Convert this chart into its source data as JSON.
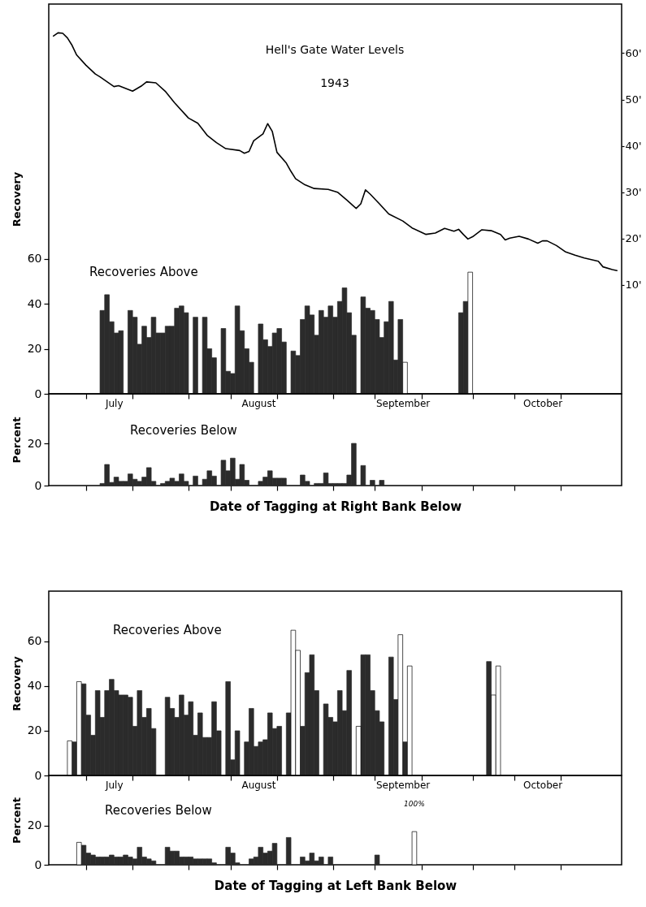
{
  "chart_data": [
    {
      "type": "bar",
      "title": "Hell's Gate Water Levels",
      "subtitle": "1943",
      "ylabel": "Recovery",
      "annotations": [
        "Recoveries Above"
      ],
      "xlim": [
        "1943-07-02",
        "1943-11-02"
      ],
      "xticks": [
        {
          "value": "1943-07-10",
          "label": null
        },
        {
          "value": "1943-07-16",
          "label": "July"
        },
        {
          "value": "1943-07-20",
          "label": null
        },
        {
          "value": "1943-08-01",
          "label": null
        },
        {
          "value": "1943-08-10",
          "label": null
        },
        {
          "value": "1943-08-16",
          "label": "August"
        },
        {
          "value": "1943-08-20",
          "label": null
        },
        {
          "value": "1943-09-01",
          "label": null
        },
        {
          "value": "1943-09-10",
          "label": null
        },
        {
          "value": "1943-09-16",
          "label": "September"
        },
        {
          "value": "1943-09-20",
          "label": null
        },
        {
          "value": "1943-10-01",
          "label": null
        },
        {
          "value": "1943-10-10",
          "label": null
        },
        {
          "value": "1943-10-16",
          "label": "October"
        },
        {
          "value": "1943-10-20",
          "label": null
        }
      ],
      "ylim": [
        0,
        173
      ],
      "yticks": [
        0,
        20,
        40,
        60
      ],
      "y2lim": [
        -13.5,
        70.6
      ],
      "y2ticks": [
        {
          "value": 10,
          "label": "10'"
        },
        {
          "value": 20,
          "label": "20'"
        },
        {
          "value": 30,
          "label": "30'"
        },
        {
          "value": 40,
          "label": "40'"
        },
        {
          "value": 50,
          "label": "50'"
        },
        {
          "value": 60,
          "label": "60'"
        }
      ],
      "series": [
        {
          "color": "#2b2b2b",
          "x": [
            "1943-07-13",
            "1943-07-14",
            "1943-07-15",
            "1943-07-16",
            "1943-07-17",
            "1943-07-19",
            "1943-07-20",
            "1943-07-21",
            "1943-07-22",
            "1943-07-23",
            "1943-07-24",
            "1943-07-25",
            "1943-07-26",
            "1943-07-27",
            "1943-07-28",
            "1943-07-29",
            "1943-07-30",
            "1943-07-31",
            "1943-08-02",
            "1943-08-04",
            "1943-08-05",
            "1943-08-06",
            "1943-08-08",
            "1943-08-09",
            "1943-08-10",
            "1943-08-11",
            "1943-08-12",
            "1943-08-13",
            "1943-08-14",
            "1943-08-16",
            "1943-08-17",
            "1943-08-18",
            "1943-08-19",
            "1943-08-20",
            "1943-08-21",
            "1943-08-23",
            "1943-08-24",
            "1943-08-25",
            "1943-08-26",
            "1943-08-27",
            "1943-08-28",
            "1943-08-29",
            "1943-08-30",
            "1943-08-31",
            "1943-09-01",
            "1943-09-02",
            "1943-09-03",
            "1943-09-04",
            "1943-09-05",
            "1943-09-07",
            "1943-09-08",
            "1943-09-09",
            "1943-09-10",
            "1943-09-11",
            "1943-09-12",
            "1943-09-13",
            "1943-09-14",
            "1943-09-15",
            "1943-09-28",
            "1943-09-29"
          ],
          "values": [
            37,
            44,
            32,
            27,
            28,
            37,
            34,
            22,
            30,
            25,
            34,
            27,
            27,
            30,
            30,
            38,
            39,
            36,
            34,
            34,
            20,
            16,
            29,
            10,
            9,
            39,
            28,
            20,
            14,
            31,
            24,
            21,
            27,
            29,
            23,
            19,
            17,
            33,
            39,
            35,
            26,
            37,
            34,
            39,
            34,
            41,
            47,
            36,
            26,
            43,
            38,
            37,
            33,
            25,
            32,
            41,
            15,
            33,
            36,
            41
          ]
        },
        {
          "color": "#ffffff",
          "x": [
            "1943-09-16",
            "1943-09-30"
          ],
          "values": [
            14,
            54
          ]
        },
        {
          "type": "line",
          "axis": "y2",
          "color": "#000000",
          "x": [
            "1943-07-03",
            "1943-07-04",
            "1943-07-05",
            "1943-07-06",
            "1943-07-07",
            "1943-07-08",
            "1943-07-10",
            "1943-07-12",
            "1943-07-13",
            "1943-07-16",
            "1943-07-17",
            "1943-07-19",
            "1943-07-20",
            "1943-07-22",
            "1943-07-23",
            "1943-07-25",
            "1943-07-27",
            "1943-07-29",
            "1943-08-01",
            "1943-08-03",
            "1943-08-05",
            "1943-08-07",
            "1943-08-09",
            "1943-08-12",
            "1943-08-13",
            "1943-08-14",
            "1943-08-15",
            "1943-08-17",
            "1943-08-18",
            "1943-08-19",
            "1943-08-20",
            "1943-08-22",
            "1943-08-23",
            "1943-08-24",
            "1943-08-26",
            "1943-08-28",
            "1943-08-31",
            "1943-09-02",
            "1943-09-04",
            "1943-09-06",
            "1943-09-07",
            "1943-09-08",
            "1943-09-09",
            "1943-09-11",
            "1943-09-13",
            "1943-09-16",
            "1943-09-18",
            "1943-09-21",
            "1943-09-23",
            "1943-09-25",
            "1943-09-27",
            "1943-09-28",
            "1943-09-29",
            "1943-09-30",
            "1943-10-01",
            "1943-10-03",
            "1943-10-05",
            "1943-10-07",
            "1943-10-08",
            "1943-10-09",
            "1943-10-11",
            "1943-10-13",
            "1943-10-15",
            "1943-10-16",
            "1943-10-17",
            "1943-10-19",
            "1943-10-21",
            "1943-10-23",
            "1943-10-25",
            "1943-10-28",
            "1943-10-29",
            "1943-10-31",
            "1943-11-01"
          ],
          "values": [
            63.7,
            64.4,
            64.3,
            63.3,
            61.7,
            59.6,
            57.4,
            55.5,
            54.9,
            52.8,
            53.0,
            52.2,
            51.8,
            53.0,
            53.8,
            53.6,
            51.8,
            49.3,
            46.0,
            44.9,
            42.3,
            40.7,
            39.4,
            39.0,
            38.4,
            38.8,
            41.1,
            42.6,
            44.8,
            43.1,
            38.6,
            36.3,
            34.5,
            32.9,
            31.6,
            30.8,
            30.6,
            30.0,
            28.3,
            26.5,
            27.5,
            30.5,
            29.6,
            27.5,
            25.3,
            23.8,
            22.3,
            20.9,
            21.2,
            22.2,
            21.6,
            22.0,
            20.9,
            19.9,
            20.4,
            21.9,
            21.7,
            20.9,
            19.7,
            20.1,
            20.5,
            19.9,
            19.0,
            19.5,
            19.5,
            18.5,
            17.1,
            16.4,
            15.8,
            15.1,
            13.9,
            13.3,
            13.1
          ]
        }
      ]
    },
    {
      "type": "bar",
      "ylabel": "Percent",
      "xlabel": "Date of Tagging at Right Bank Below",
      "annotations": [
        "Recoveries Below"
      ],
      "tick_labels": "y",
      "xlim": [
        "1943-07-02",
        "1943-11-02"
      ],
      "xticks": [
        {
          "value": "1943-07-10",
          "label": null
        },
        {
          "value": "1943-07-20",
          "label": null
        },
        {
          "value": "1943-08-01",
          "label": null
        },
        {
          "value": "1943-08-10",
          "label": null
        },
        {
          "value": "1943-08-20",
          "label": null
        },
        {
          "value": "1943-09-01",
          "label": null
        },
        {
          "value": "1943-09-10",
          "label": null
        },
        {
          "value": "1943-09-20",
          "label": null
        },
        {
          "value": "1943-10-01",
          "label": null
        },
        {
          "value": "1943-10-10",
          "label": null
        },
        {
          "value": "1943-10-20",
          "label": null
        }
      ],
      "ylim": [
        0,
        43.5
      ],
      "yticks": [
        0,
        20
      ],
      "series": [
        {
          "color": "#2b2b2b",
          "x": [
            "1943-07-13",
            "1943-07-14",
            "1943-07-15",
            "1943-07-16",
            "1943-07-17",
            "1943-07-18",
            "1943-07-19",
            "1943-07-20",
            "1943-07-21",
            "1943-07-22",
            "1943-07-23",
            "1943-07-24",
            "1943-07-26",
            "1943-07-27",
            "1943-07-28",
            "1943-07-29",
            "1943-07-30",
            "1943-07-31",
            "1943-08-02",
            "1943-08-04",
            "1943-08-05",
            "1943-08-06",
            "1943-08-08",
            "1943-08-09",
            "1943-08-10",
            "1943-08-11",
            "1943-08-12",
            "1943-08-13",
            "1943-08-16",
            "1943-08-17",
            "1943-08-18",
            "1943-08-19",
            "1943-08-20",
            "1943-08-21",
            "1943-08-25",
            "1943-08-26",
            "1943-08-28",
            "1943-08-29",
            "1943-08-30",
            "1943-08-31",
            "1943-09-01",
            "1943-09-02",
            "1943-09-03",
            "1943-09-04",
            "1943-09-05",
            "1943-09-07",
            "1943-09-09",
            "1943-09-11"
          ],
          "values": [
            1,
            10,
            1.5,
            4,
            2,
            2,
            5.5,
            3,
            2,
            4,
            8.5,
            2,
            1,
            2,
            3.5,
            2,
            5.5,
            2,
            4.5,
            3,
            7,
            4.5,
            12,
            7,
            13,
            3,
            10,
            2.5,
            2,
            4,
            7,
            3.5,
            3.5,
            3.5,
            5,
            2,
            1,
            1,
            6,
            1,
            1,
            1,
            1,
            5,
            20,
            9.5,
            2.5,
            2.5
          ]
        }
      ]
    },
    {
      "type": "bar",
      "ylabel": "Recovery",
      "annotations": [
        "Recoveries Above"
      ],
      "xlim": [
        "1943-07-02",
        "1943-11-02"
      ],
      "xticks": [
        {
          "value": "1943-07-10",
          "label": null
        },
        {
          "value": "1943-07-16",
          "label": "July"
        },
        {
          "value": "1943-07-20",
          "label": null
        },
        {
          "value": "1943-08-01",
          "label": null
        },
        {
          "value": "1943-08-10",
          "label": null
        },
        {
          "value": "1943-08-16",
          "label": "August"
        },
        {
          "value": "1943-08-20",
          "label": null
        },
        {
          "value": "1943-09-01",
          "label": null
        },
        {
          "value": "1943-09-10",
          "label": null
        },
        {
          "value": "1943-09-16",
          "label": "September"
        },
        {
          "value": "1943-09-20",
          "label": null
        },
        {
          "value": "1943-10-01",
          "label": null
        },
        {
          "value": "1943-10-10",
          "label": null
        },
        {
          "value": "1943-10-16",
          "label": "October"
        },
        {
          "value": "1943-10-20",
          "label": null
        }
      ],
      "ylim": [
        0,
        82.5
      ],
      "yticks": [
        0,
        20,
        40,
        60
      ],
      "series": [
        {
          "color": "#2b2b2b",
          "x": [
            "1943-07-07",
            "1943-07-09",
            "1943-07-10",
            "1943-07-11",
            "1943-07-12",
            "1943-07-13",
            "1943-07-14",
            "1943-07-15",
            "1943-07-16",
            "1943-07-17",
            "1943-07-18",
            "1943-07-19",
            "1943-07-20",
            "1943-07-21",
            "1943-07-22",
            "1943-07-23",
            "1943-07-24",
            "1943-07-27",
            "1943-07-28",
            "1943-07-29",
            "1943-07-30",
            "1943-07-31",
            "1943-08-01",
            "1943-08-02",
            "1943-08-03",
            "1943-08-04",
            "1943-08-05",
            "1943-08-06",
            "1943-08-07",
            "1943-08-09",
            "1943-08-10",
            "1943-08-11",
            "1943-08-13",
            "1943-08-14",
            "1943-08-15",
            "1943-08-16",
            "1943-08-17",
            "1943-08-18",
            "1943-08-19",
            "1943-08-20",
            "1943-08-22",
            "1943-08-25",
            "1943-08-26",
            "1943-08-27",
            "1943-08-28",
            "1943-08-30",
            "1943-08-31",
            "1943-09-01",
            "1943-09-02",
            "1943-09-03",
            "1943-09-04",
            "1943-09-07",
            "1943-09-08",
            "1943-09-09",
            "1943-09-10",
            "1943-09-11",
            "1943-09-13",
            "1943-09-14",
            "1943-09-16",
            "1943-10-04"
          ],
          "values": [
            15,
            41,
            27,
            18,
            38,
            26,
            38,
            43,
            38,
            36,
            36,
            35,
            22,
            38,
            26,
            30,
            21,
            35,
            30,
            26,
            36,
            27,
            33,
            18,
            28,
            17,
            17,
            33,
            20,
            42,
            7,
            20,
            15,
            30,
            13,
            15,
            16,
            28,
            21,
            22,
            28,
            22,
            46,
            54,
            38,
            32,
            26,
            24,
            38,
            29,
            47,
            54,
            54,
            38,
            29,
            24,
            53,
            34,
            15,
            51
          ]
        },
        {
          "color": "#ffffff",
          "x": [
            "1943-07-06",
            "1943-07-08",
            "1943-08-23",
            "1943-08-24",
            "1943-09-06",
            "1943-09-15",
            "1943-09-17",
            "1943-10-05",
            "1943-10-06"
          ],
          "values": [
            15.5,
            42,
            65,
            56,
            22,
            63,
            49,
            36,
            49
          ]
        }
      ]
    },
    {
      "type": "bar",
      "ylabel": "Percent",
      "xlabel": "Date of Tagging at Left Bank Below",
      "annotations": [
        "Recoveries Below",
        "100%"
      ],
      "tick_labels": "y",
      "xlim": [
        "1943-07-02",
        "1943-11-02"
      ],
      "xticks": [
        {
          "value": "1943-07-10",
          "label": null
        },
        {
          "value": "1943-07-20",
          "label": null
        },
        {
          "value": "1943-08-01",
          "label": null
        },
        {
          "value": "1943-08-10",
          "label": null
        },
        {
          "value": "1943-08-20",
          "label": null
        },
        {
          "value": "1943-09-01",
          "label": null
        },
        {
          "value": "1943-09-10",
          "label": null
        },
        {
          "value": "1943-09-20",
          "label": null
        },
        {
          "value": "1943-10-01",
          "label": null
        },
        {
          "value": "1943-10-10",
          "label": null
        },
        {
          "value": "1943-10-20",
          "label": null
        }
      ],
      "ylim": [
        0,
        45.8
      ],
      "yticks": [
        0,
        20
      ],
      "series": [
        {
          "color": "#2b2b2b",
          "x": [
            "1943-07-09",
            "1943-07-10",
            "1943-07-11",
            "1943-07-12",
            "1943-07-13",
            "1943-07-14",
            "1943-07-15",
            "1943-07-16",
            "1943-07-17",
            "1943-07-18",
            "1943-07-19",
            "1943-07-20",
            "1943-07-21",
            "1943-07-22",
            "1943-07-23",
            "1943-07-24",
            "1943-07-27",
            "1943-07-28",
            "1943-07-29",
            "1943-07-30",
            "1943-07-31",
            "1943-08-01",
            "1943-08-02",
            "1943-08-03",
            "1943-08-04",
            "1943-08-05",
            "1943-08-06",
            "1943-08-09",
            "1943-08-10",
            "1943-08-11",
            "1943-08-14",
            "1943-08-15",
            "1943-08-16",
            "1943-08-17",
            "1943-08-18",
            "1943-08-19",
            "1943-08-22",
            "1943-08-25",
            "1943-08-26",
            "1943-08-27",
            "1943-08-28",
            "1943-08-29",
            "1943-08-31",
            "1943-09-10"
          ],
          "values": [
            10,
            6,
            5,
            4,
            4,
            4,
            5,
            4,
            4,
            5,
            4,
            3,
            9,
            4,
            3,
            2,
            9,
            7,
            7,
            4,
            4,
            4,
            3,
            3,
            3,
            3,
            1,
            9,
            6,
            1,
            3,
            4,
            9,
            6,
            7,
            11,
            14,
            4,
            2,
            6,
            2,
            4,
            4,
            5
          ]
        },
        {
          "color": "#ffffff",
          "x": [
            "1943-07-08",
            "1943-09-18"
          ],
          "values": [
            11.5,
            17
          ]
        }
      ]
    }
  ]
}
